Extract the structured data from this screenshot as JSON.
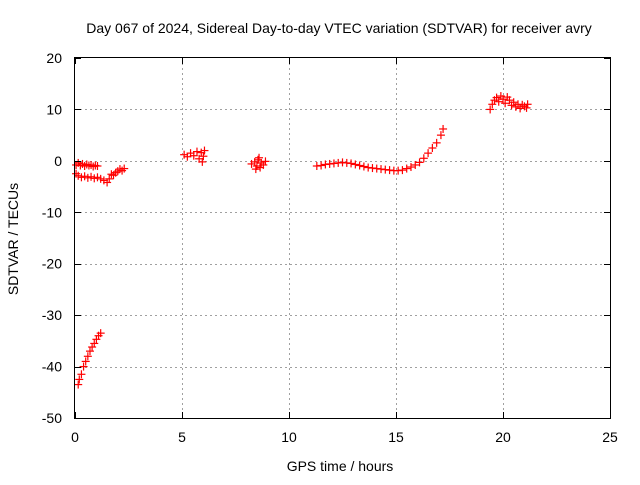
{
  "chart_data": {
    "type": "scatter",
    "title": "Day 067 of 2024, Sidereal Day-to-day VTEC variation (SDTVAR) for receiver avry",
    "xlabel": "GPS time / hours",
    "ylabel": "SDTVAR / TECUs",
    "xlim": [
      0,
      25
    ],
    "ylim": [
      -50,
      20
    ],
    "xticks": [
      0,
      5,
      10,
      15,
      20,
      25
    ],
    "yticks": [
      -50,
      -40,
      -30,
      -20,
      -10,
      0,
      10,
      20
    ],
    "grid": true,
    "series": [
      {
        "name": "SDTVAR",
        "color": "#ff0000",
        "marker": "plus",
        "points": [
          [
            0.05,
            -0.8
          ],
          [
            0.15,
            -0.4
          ],
          [
            0.25,
            -0.9
          ],
          [
            0.35,
            -0.6
          ],
          [
            0.45,
            -1.0
          ],
          [
            0.55,
            -0.7
          ],
          [
            0.65,
            -0.9
          ],
          [
            0.75,
            -0.8
          ],
          [
            0.85,
            -1.1
          ],
          [
            0.95,
            -0.9
          ],
          [
            1.05,
            -1.0
          ],
          [
            0.05,
            -2.5
          ],
          [
            0.15,
            -2.9
          ],
          [
            0.3,
            -3.2
          ],
          [
            0.45,
            -3.0
          ],
          [
            0.6,
            -3.3
          ],
          [
            0.75,
            -3.1
          ],
          [
            0.9,
            -3.4
          ],
          [
            1.05,
            -3.2
          ],
          [
            1.2,
            -3.5
          ],
          [
            1.35,
            -3.8
          ],
          [
            1.5,
            -4.2
          ],
          [
            1.6,
            -3.5
          ],
          [
            1.7,
            -2.6
          ],
          [
            1.8,
            -2.8
          ],
          [
            1.9,
            -2.3
          ],
          [
            2.0,
            -2.0
          ],
          [
            2.1,
            -1.6
          ],
          [
            2.2,
            -1.9
          ],
          [
            2.3,
            -1.5
          ],
          [
            0.15,
            -43.5
          ],
          [
            0.2,
            -42.5
          ],
          [
            0.3,
            -41.5
          ],
          [
            0.4,
            -40.0
          ],
          [
            0.5,
            -39.0
          ],
          [
            0.6,
            -38.0
          ],
          [
            0.7,
            -37.0
          ],
          [
            0.8,
            -36.2
          ],
          [
            0.9,
            -35.5
          ],
          [
            1.0,
            -34.7
          ],
          [
            1.1,
            -34.0
          ],
          [
            1.2,
            -33.5
          ],
          [
            5.1,
            1.2
          ],
          [
            5.25,
            0.8
          ],
          [
            5.4,
            1.5
          ],
          [
            5.55,
            1.0
          ],
          [
            5.7,
            1.8
          ],
          [
            5.8,
            0.4
          ],
          [
            5.9,
            1.6
          ],
          [
            6.0,
            0.9
          ],
          [
            6.05,
            2.0
          ],
          [
            5.95,
            -0.2
          ],
          [
            8.25,
            -0.6
          ],
          [
            8.4,
            -0.2
          ],
          [
            8.5,
            -1.0
          ],
          [
            8.55,
            0.2
          ],
          [
            8.65,
            -1.3
          ],
          [
            8.7,
            -0.4
          ],
          [
            8.8,
            -0.8
          ],
          [
            8.9,
            -0.1
          ],
          [
            8.45,
            -1.6
          ],
          [
            8.6,
            0.6
          ],
          [
            11.3,
            -1.0
          ],
          [
            11.5,
            -0.9
          ],
          [
            11.7,
            -0.7
          ],
          [
            11.9,
            -0.6
          ],
          [
            12.1,
            -0.5
          ],
          [
            12.3,
            -0.4
          ],
          [
            12.5,
            -0.3
          ],
          [
            12.7,
            -0.4
          ],
          [
            12.9,
            -0.5
          ],
          [
            13.1,
            -0.7
          ],
          [
            13.3,
            -0.9
          ],
          [
            13.5,
            -1.1
          ],
          [
            13.7,
            -1.3
          ],
          [
            13.9,
            -1.4
          ],
          [
            14.1,
            -1.5
          ],
          [
            14.3,
            -1.6
          ],
          [
            14.5,
            -1.7
          ],
          [
            14.7,
            -1.8
          ],
          [
            14.9,
            -1.9
          ],
          [
            15.1,
            -1.9
          ],
          [
            15.3,
            -1.8
          ],
          [
            15.5,
            -1.5
          ],
          [
            15.7,
            -1.2
          ],
          [
            15.9,
            -0.8
          ],
          [
            16.1,
            -0.3
          ],
          [
            16.3,
            0.5
          ],
          [
            16.5,
            1.5
          ],
          [
            16.7,
            2.5
          ],
          [
            16.9,
            3.5
          ],
          [
            17.1,
            5.0
          ],
          [
            17.2,
            6.2
          ],
          [
            19.4,
            10.0
          ],
          [
            19.5,
            11.0
          ],
          [
            19.6,
            11.8
          ],
          [
            19.7,
            12.3
          ],
          [
            19.8,
            11.5
          ],
          [
            19.9,
            12.6
          ],
          [
            20.0,
            12.0
          ],
          [
            20.1,
            11.2
          ],
          [
            20.2,
            12.4
          ],
          [
            20.3,
            11.8
          ],
          [
            20.4,
            10.8
          ],
          [
            20.5,
            11.4
          ],
          [
            20.6,
            10.5
          ],
          [
            20.7,
            11.0
          ],
          [
            20.8,
            10.2
          ],
          [
            20.9,
            10.9
          ],
          [
            21.0,
            10.6
          ],
          [
            21.1,
            10.3
          ],
          [
            21.15,
            11.0
          ]
        ]
      }
    ]
  }
}
